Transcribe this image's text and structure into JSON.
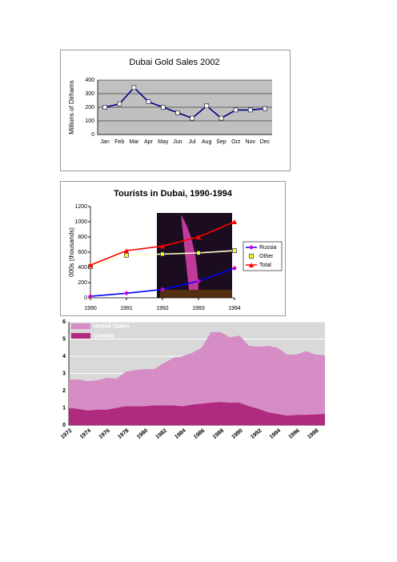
{
  "chart_data": [
    {
      "type": "line",
      "title": "Dubai Gold Sales 2002",
      "y_label": "Millions of Dirhams",
      "categories": [
        "Jan",
        "Feb",
        "Mar",
        "Apr",
        "May",
        "Jun",
        "Jul",
        "Aug",
        "Sep",
        "Oct",
        "Nov",
        "Dec"
      ],
      "values": [
        200,
        225,
        345,
        240,
        200,
        160,
        120,
        210,
        120,
        180,
        180,
        190
      ],
      "color": "#000080",
      "marker_color": "#ffffcc",
      "marker": "square",
      "ylim": [
        0,
        400
      ],
      "yticks": [
        0,
        100,
        200,
        300,
        400
      ],
      "grid": true
    },
    {
      "type": "line",
      "title": "Tourists in Dubai, 1990-1994",
      "y_label": "000s (thousands)",
      "x": [
        1990,
        1991,
        1992,
        1993,
        1994
      ],
      "xlim": [
        1990,
        1994
      ],
      "xticks": [
        1990,
        1991,
        1992,
        1993,
        1994
      ],
      "ylim": [
        0,
        1200
      ],
      "yticks": [
        0,
        200,
        400,
        600,
        800,
        1000,
        1200
      ],
      "grid": false,
      "legend": "right",
      "series": [
        {
          "name": "Russia",
          "color": "#0000ff",
          "marker_color": "#cc00cc",
          "marker": "diamond",
          "values": [
            20,
            60,
            110,
            220,
            390
          ]
        },
        {
          "name": "Other",
          "color": "#ffffcc",
          "marker_color": "#ffff00",
          "marker": "square",
          "values": [
            410,
            560,
            575,
            590,
            620
          ]
        },
        {
          "name": "Total",
          "color": "#ff0000",
          "marker_color": "#ff0000",
          "marker": "triangle",
          "values": [
            430,
            620,
            680,
            800,
            1000
          ]
        }
      ]
    },
    {
      "type": "area",
      "stacked": true,
      "legend": "upper left",
      "grid": true,
      "x": [
        1972,
        1973,
        1974,
        1975,
        1976,
        1977,
        1978,
        1979,
        1980,
        1981,
        1982,
        1983,
        1984,
        1985,
        1986,
        1987,
        1988,
        1989,
        1990,
        1991,
        1992,
        1993,
        1994,
        1995,
        1996,
        1997,
        1998,
        1999
      ],
      "xlim": [
        1972,
        1999
      ],
      "xticks": [
        1972,
        1974,
        1976,
        1978,
        1980,
        1982,
        1984,
        1986,
        1988,
        1990,
        1992,
        1994,
        1996,
        1998
      ],
      "ylim": [
        0,
        6
      ],
      "yticks": [
        0,
        1,
        2,
        3,
        4,
        5,
        6
      ],
      "series": [
        {
          "name": "United States",
          "color": "#d68cc4",
          "values": [
            1.65,
            1.7,
            1.7,
            1.7,
            1.85,
            1.7,
            2.0,
            2.1,
            2.15,
            2.1,
            2.45,
            2.75,
            2.9,
            3.0,
            3.25,
            4.1,
            4.05,
            3.8,
            3.9,
            3.5,
            3.6,
            3.85,
            3.85,
            3.55,
            3.5,
            3.7,
            3.48,
            3.4
          ]
        },
        {
          "name": "Canada",
          "color": "#b02a80",
          "values": [
            1.0,
            0.95,
            0.85,
            0.9,
            0.9,
            1.0,
            1.1,
            1.1,
            1.1,
            1.15,
            1.15,
            1.15,
            1.1,
            1.2,
            1.25,
            1.3,
            1.35,
            1.3,
            1.3,
            1.1,
            0.95,
            0.75,
            0.65,
            0.55,
            0.6,
            0.6,
            0.62,
            0.65
          ]
        }
      ]
    }
  ]
}
